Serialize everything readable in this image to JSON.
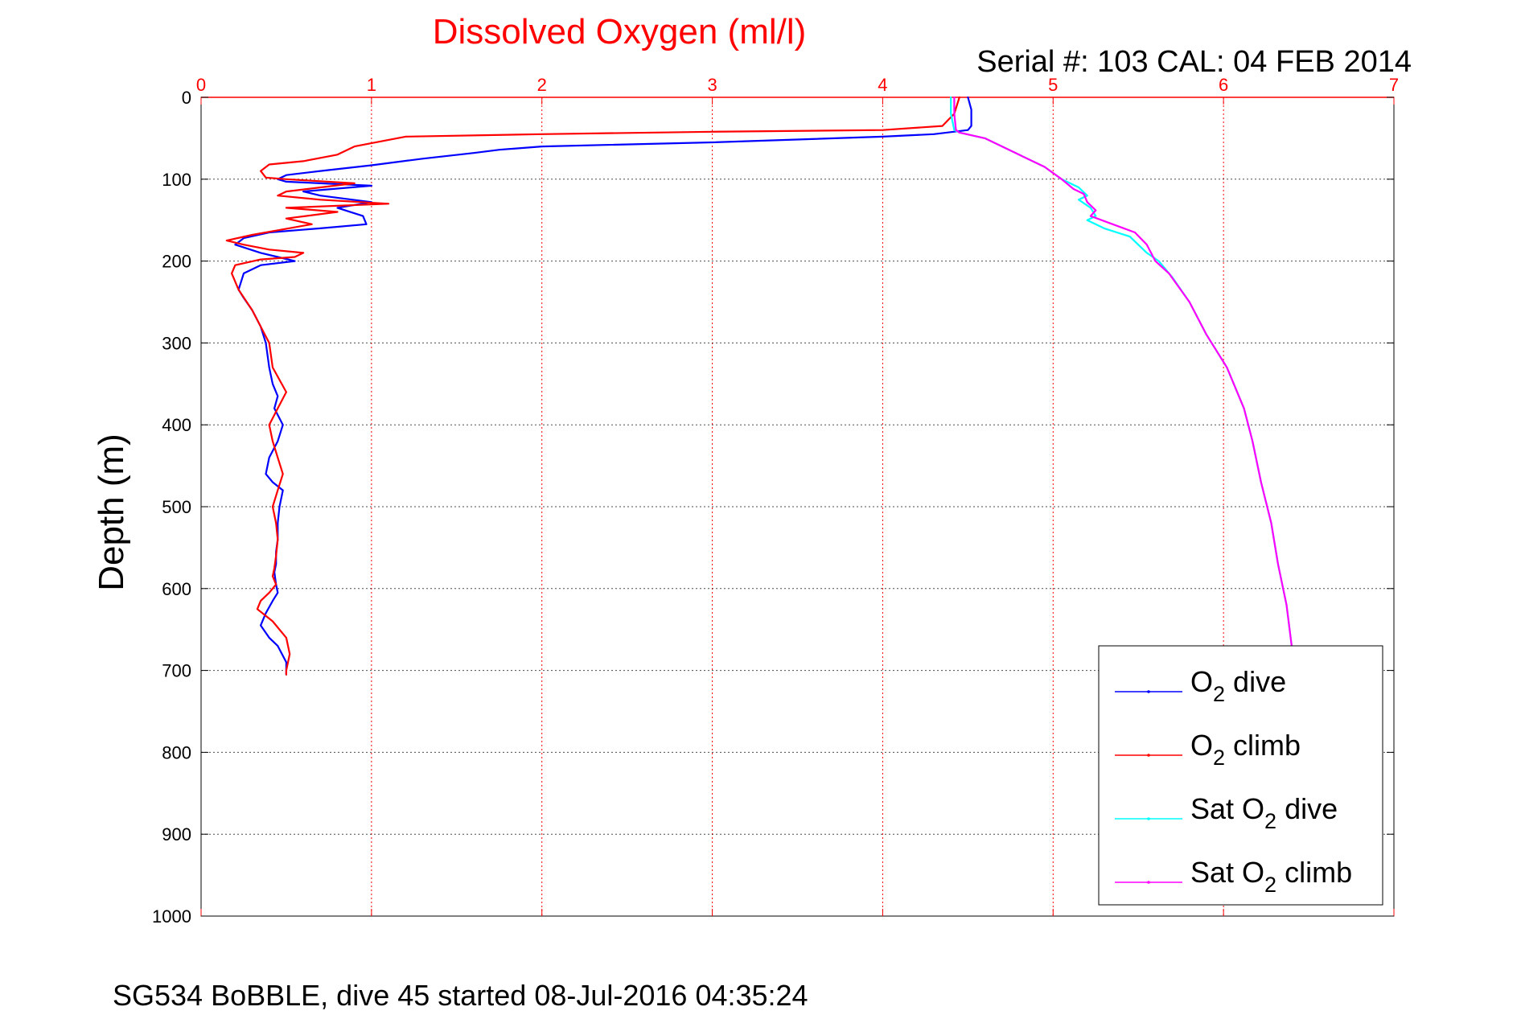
{
  "chart_data": {
    "type": "line",
    "title": "Dissolved Oxygen (ml/l)",
    "subtitle": "Serial #: 103  CAL: 04 FEB 2014",
    "xlabel": "Dissolved Oxygen (ml/l)",
    "ylabel": "Depth (m)",
    "footer": "SG534 BoBBLE, dive 45 started 08-Jul-2016 04:35:24",
    "xlim": [
      0,
      7
    ],
    "ylim": [
      0,
      1000
    ],
    "y_reversed": true,
    "x_axis_position": "top",
    "x_ticks": [
      "0",
      "1",
      "2",
      "3",
      "4",
      "5",
      "6",
      "7"
    ],
    "y_ticks": [
      "0",
      "100",
      "200",
      "300",
      "400",
      "500",
      "600",
      "700",
      "800",
      "900",
      "1000"
    ],
    "grid": true,
    "legend_position": "bottom-right",
    "colors": {
      "x_axis": "#ff0000",
      "grid_x": "#ff0000",
      "grid_y": "#000000"
    },
    "series": [
      {
        "name": "O2 dive",
        "legend": {
          "pre": "O",
          "sub": "2",
          "post": " dive"
        },
        "color": "#0000ff",
        "x": [
          4.5,
          4.52,
          4.52,
          4.5,
          4.3,
          4.0,
          3.0,
          2.0,
          1.75,
          1.6,
          1.3,
          1.0,
          0.7,
          0.5,
          0.45,
          0.5,
          0.7,
          1.0,
          0.6,
          0.7,
          1.0,
          0.8,
          0.95,
          0.97,
          0.7,
          0.4,
          0.25,
          0.2,
          0.35,
          0.45,
          0.55,
          0.35,
          0.25,
          0.22,
          0.25,
          0.3,
          0.35,
          0.38,
          0.4,
          0.42,
          0.45,
          0.43,
          0.48,
          0.45,
          0.4,
          0.38,
          0.42,
          0.48,
          0.46,
          0.45,
          0.45,
          0.44,
          0.44,
          0.43,
          0.44,
          0.45,
          0.42,
          0.38,
          0.35,
          0.4,
          0.45,
          0.5,
          0.5
        ],
        "y": [
          0,
          15,
          35,
          40,
          45,
          48,
          55,
          60,
          64,
          68,
          75,
          83,
          90,
          95,
          100,
          103,
          105,
          108,
          115,
          120,
          128,
          135,
          145,
          155,
          160,
          165,
          172,
          180,
          190,
          195,
          200,
          205,
          215,
          235,
          245,
          260,
          280,
          300,
          330,
          350,
          365,
          380,
          400,
          420,
          440,
          460,
          470,
          480,
          500,
          520,
          540,
          555,
          570,
          580,
          595,
          605,
          615,
          630,
          645,
          660,
          670,
          690,
          705
        ]
      },
      {
        "name": "O2 climb",
        "legend": {
          "pre": "O",
          "sub": "2",
          "post": " climb"
        },
        "color": "#ff0000",
        "x": [
          4.45,
          4.42,
          4.35,
          4.0,
          3.0,
          2.0,
          1.2,
          1.15,
          0.9,
          0.8,
          0.6,
          0.4,
          0.35,
          0.38,
          0.5,
          0.9,
          0.5,
          0.45,
          0.7,
          1.1,
          0.5,
          0.8,
          0.5,
          0.65,
          0.3,
          0.15,
          0.25,
          0.4,
          0.6,
          0.55,
          0.35,
          0.2,
          0.18,
          0.22,
          0.3,
          0.35,
          0.4,
          0.42,
          0.5,
          0.45,
          0.4,
          0.42,
          0.45,
          0.48,
          0.45,
          0.42,
          0.44,
          0.45,
          0.44,
          0.43,
          0.42,
          0.44,
          0.4,
          0.35,
          0.33,
          0.42,
          0.5,
          0.52,
          0.5,
          0.5
        ],
        "y": [
          0,
          20,
          35,
          40,
          42,
          45,
          48,
          50,
          60,
          70,
          78,
          82,
          90,
          98,
          100,
          105,
          115,
          120,
          125,
          130,
          135,
          140,
          148,
          155,
          168,
          175,
          180,
          186,
          190,
          195,
          198,
          205,
          215,
          235,
          260,
          280,
          300,
          330,
          360,
          380,
          400,
          420,
          440,
          460,
          480,
          500,
          520,
          540,
          560,
          575,
          585,
          595,
          605,
          615,
          625,
          640,
          660,
          680,
          700,
          705
        ]
      },
      {
        "name": "Sat O2 dive",
        "legend": {
          "pre": "Sat O",
          "sub": "2",
          "post": " dive"
        },
        "color": "#00ffff",
        "x": [
          4.4,
          4.4,
          4.42,
          4.45,
          4.6,
          4.8,
          4.95,
          5.05,
          5.15,
          5.2,
          5.15,
          5.22,
          5.25,
          5.2,
          5.3,
          5.45,
          5.55,
          5.62,
          5.7,
          5.8,
          5.9,
          6.02,
          6.12,
          6.17,
          6.22,
          6.28,
          6.32,
          6.37,
          6.4
        ],
        "y": [
          0,
          20,
          40,
          43,
          50,
          70,
          85,
          100,
          110,
          120,
          125,
          135,
          145,
          150,
          160,
          170,
          190,
          200,
          220,
          250,
          290,
          330,
          380,
          420,
          470,
          520,
          570,
          620,
          670
        ]
      },
      {
        "name": "Sat O2 climb",
        "legend": {
          "pre": "Sat O",
          "sub": "2",
          "post": " climb"
        },
        "color": "#ff00ff",
        "x": [
          4.42,
          4.42,
          4.43,
          4.45,
          4.6,
          4.8,
          4.95,
          5.05,
          5.12,
          5.18,
          5.2,
          5.25,
          5.22,
          5.35,
          5.48,
          5.55,
          5.6,
          5.68,
          5.8,
          5.9,
          6.02,
          6.12,
          6.17,
          6.22,
          6.28,
          6.32,
          6.37,
          6.4
        ],
        "y": [
          0,
          20,
          40,
          43,
          50,
          70,
          85,
          100,
          112,
          118,
          128,
          138,
          145,
          155,
          165,
          180,
          200,
          215,
          250,
          290,
          330,
          380,
          420,
          470,
          520,
          570,
          620,
          670
        ]
      }
    ]
  }
}
